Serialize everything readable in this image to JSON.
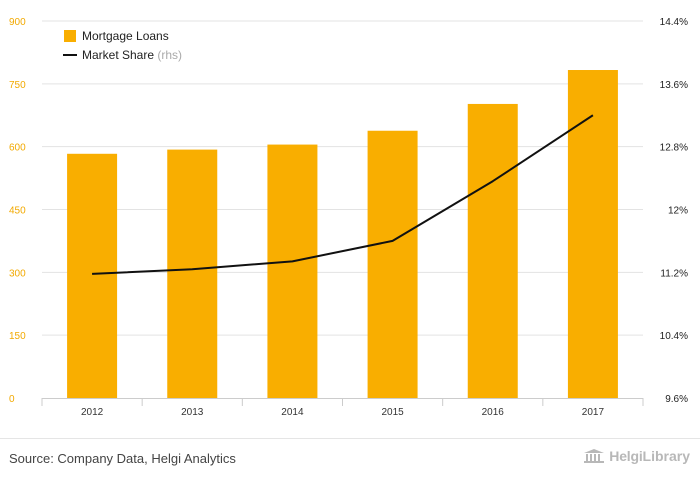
{
  "chart_data": {
    "type": "bar",
    "categories": [
      "2012",
      "2013",
      "2014",
      "2015",
      "2016",
      "2017"
    ],
    "series": [
      {
        "name": "Mortgage Loans",
        "type": "bar",
        "axis": "left",
        "values": [
          583,
          593,
          605,
          638,
          702,
          783
        ]
      },
      {
        "name": "Market Share",
        "legend_suffix": "(rhs)",
        "type": "line",
        "axis": "right",
        "values": [
          11.18,
          11.24,
          11.34,
          11.6,
          12.36,
          13.2
        ]
      }
    ],
    "y_left": {
      "min": 0,
      "max": 900,
      "ticks": [
        0,
        150,
        300,
        450,
        600,
        750,
        900
      ],
      "tick_labels": [
        "0",
        "150",
        "300",
        "450",
        "600",
        "750",
        "900"
      ]
    },
    "y_right": {
      "min": 9.6,
      "max": 14.4,
      "ticks": [
        9.6,
        10.4,
        11.2,
        12.0,
        12.8,
        13.6,
        14.4
      ],
      "tick_labels": [
        "9.6%",
        "10.4%",
        "11.2%",
        "12%",
        "12.8%",
        "13.6%",
        "14.4%"
      ]
    },
    "grid": true,
    "legend_position": "top-left",
    "colors": {
      "bar": "#f9ae00",
      "line": "#111111",
      "left_tick": "#f2a900",
      "grid": "#e3e3e3"
    }
  },
  "footer": {
    "source": "Source: Company Data, Helgi Analytics",
    "brand_name": "Helgi",
    "brand_suffix": "Library"
  }
}
